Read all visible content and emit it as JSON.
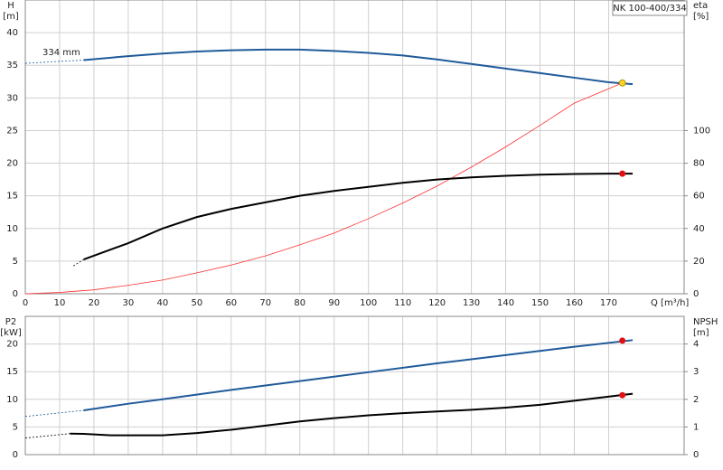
{
  "chart_data": [
    {
      "type": "line",
      "title": "NK 100-400/334",
      "annotation": "334 mm",
      "xlabel": "Q [m³/h]",
      "ylabel": "H",
      "yunit": "[m]",
      "y2label": "eta",
      "y2unit": "[%]",
      "xlim": [
        0,
        192
      ],
      "xticks": [
        0,
        10,
        20,
        30,
        40,
        50,
        60,
        70,
        80,
        90,
        100,
        110,
        120,
        130,
        140,
        150,
        160,
        170
      ],
      "ylim": [
        0,
        45
      ],
      "yticks": [
        0,
        5,
        10,
        15,
        20,
        25,
        30,
        35,
        40
      ],
      "y2lim": [
        0,
        180
      ],
      "y2ticks": [
        0,
        20,
        40,
        60,
        80,
        100
      ],
      "grid": true,
      "series": [
        {
          "color": "#1f5a9a",
          "width": 0.8,
          "dashed": true,
          "x": [
            0,
            17
          ],
          "values": [
            35.3,
            35.8
          ]
        },
        {
          "color": "#1f5a9a",
          "width": 2,
          "x": [
            17,
            30,
            40,
            50,
            60,
            70,
            80,
            90,
            100,
            110,
            120,
            130,
            140,
            150,
            160,
            170,
            177
          ],
          "values": [
            35.8,
            36.4,
            36.8,
            37.1,
            37.3,
            37.4,
            37.4,
            37.2,
            36.9,
            36.5,
            35.9,
            35.2,
            34.5,
            33.8,
            33.1,
            32.4,
            32.1
          ]
        },
        {
          "color": "#ff3030",
          "width": 0.8,
          "x": [
            0,
            10,
            20,
            30,
            40,
            50,
            60,
            70,
            80,
            90,
            100,
            110,
            120,
            130,
            140,
            150,
            160,
            174
          ],
          "values": [
            0,
            0.2,
            0.6,
            1.3,
            2.1,
            3.2,
            4.4,
            5.8,
            7.5,
            9.3,
            11.5,
            13.9,
            16.5,
            19.4,
            22.5,
            25.8,
            29.2,
            32.3
          ]
        },
        {
          "color": "#000000",
          "width": 0.8,
          "dashed": true,
          "axis": "y2",
          "x": [
            14,
            17
          ],
          "values": [
            17,
            21
          ]
        },
        {
          "color": "#000000",
          "width": 2,
          "axis": "y2",
          "x": [
            17,
            30,
            40,
            50,
            60,
            70,
            80,
            90,
            100,
            110,
            120,
            130,
            140,
            150,
            160,
            170,
            177
          ],
          "values": [
            21,
            31,
            40,
            47,
            52,
            56,
            60,
            63,
            65.5,
            68,
            70,
            71.3,
            72.3,
            73,
            73.4,
            73.6,
            73.6
          ]
        },
        {
          "color": "#ffd21f",
          "marker": true,
          "x": [
            174
          ],
          "values": [
            32.3
          ]
        },
        {
          "color": "#e01010",
          "marker": true,
          "axis": "y2",
          "x": [
            174
          ],
          "values": [
            73.6
          ]
        }
      ]
    },
    {
      "type": "line",
      "ylabel": "P2",
      "yunit": "[kW]",
      "y2label": "NPSH",
      "y2unit": "[m]",
      "xlim": [
        0,
        192
      ],
      "ylim": [
        0,
        25
      ],
      "yticks": [
        0,
        5,
        10,
        15,
        20
      ],
      "y2lim": [
        0,
        5
      ],
      "y2ticks": [
        0,
        1,
        2,
        3,
        4
      ],
      "grid": true,
      "series": [
        {
          "color": "#1f5a9a",
          "width": 0.8,
          "dashed": true,
          "x": [
            0,
            17
          ],
          "values": [
            6.9,
            8.0
          ]
        },
        {
          "color": "#1f5a9a",
          "width": 2,
          "x": [
            17,
            30,
            40,
            60,
            80,
            100,
            120,
            140,
            160,
            177
          ],
          "values": [
            8.0,
            9.2,
            10.0,
            11.7,
            13.3,
            14.9,
            16.5,
            18.0,
            19.5,
            20.7
          ]
        },
        {
          "color": "#000000",
          "width": 0.8,
          "dashed": true,
          "axis": "y2",
          "x": [
            0,
            13
          ],
          "values": [
            0.6,
            0.76
          ]
        },
        {
          "color": "#000000",
          "width": 2,
          "axis": "y2",
          "x": [
            13,
            17,
            25,
            40,
            50,
            60,
            70,
            80,
            90,
            100,
            110,
            120,
            130,
            140,
            150,
            160,
            177
          ],
          "values": [
            0.76,
            0.75,
            0.7,
            0.7,
            0.78,
            0.9,
            1.05,
            1.2,
            1.32,
            1.42,
            1.5,
            1.56,
            1.62,
            1.7,
            1.8,
            1.95,
            2.2
          ]
        },
        {
          "color": "#e01010",
          "marker": true,
          "x": [
            174
          ],
          "values": [
            20.6
          ]
        },
        {
          "color": "#e01010",
          "marker": true,
          "axis": "y2",
          "x": [
            174
          ],
          "values": [
            2.15
          ]
        }
      ]
    }
  ]
}
